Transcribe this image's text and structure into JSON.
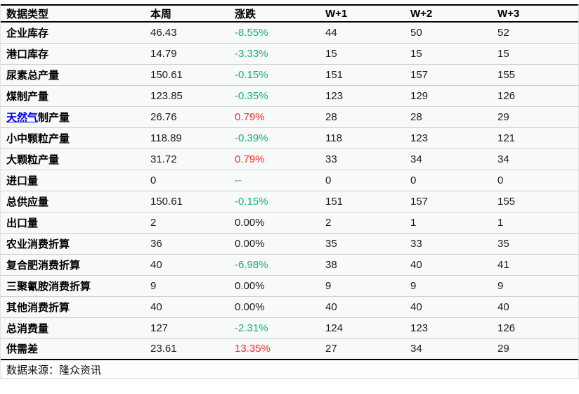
{
  "colors": {
    "positive_red": "#fa2c2c",
    "negative_green": "#12b277",
    "link_blue": "#0000ee"
  },
  "footer": {
    "source_label": "数据来源：隆众资讯"
  },
  "chart_data": {
    "type": "table",
    "columns": [
      "数据类型",
      "本周",
      "涨跌",
      "W+1",
      "W+2",
      "W+3"
    ],
    "rows": [
      {
        "label": "企业库存",
        "week": "46.43",
        "change": "-8.55%",
        "tone": "green",
        "w1": "44",
        "w2": "50",
        "w3": "52"
      },
      {
        "label": "港口库存",
        "week": "14.79",
        "change": "-3.33%",
        "tone": "green",
        "w1": "15",
        "w2": "15",
        "w3": "15"
      },
      {
        "label": "尿素总产量",
        "week": "150.61",
        "change": "-0.15%",
        "tone": "green",
        "w1": "151",
        "w2": "157",
        "w3": "155"
      },
      {
        "label": "煤制产量",
        "week": "123.85",
        "change": "-0.35%",
        "tone": "green",
        "w1": "123",
        "w2": "129",
        "w3": "126"
      },
      {
        "label_link": "天然气",
        "label": "制产量",
        "week": "26.76",
        "change": "0.79%",
        "tone": "red",
        "w1": "28",
        "w2": "28",
        "w3": "29"
      },
      {
        "label": "小中颗粒产量",
        "week": "118.89",
        "change": "-0.39%",
        "tone": "green",
        "w1": "118",
        "w2": "123",
        "w3": "121"
      },
      {
        "label": "大颗粒产量",
        "week": "31.72",
        "change": "0.79%",
        "tone": "red",
        "w1": "33",
        "w2": "34",
        "w3": "34"
      },
      {
        "label": "进口量",
        "week": "0",
        "change": "--",
        "tone": "green",
        "w1": "0",
        "w2": "0",
        "w3": "0"
      },
      {
        "label": "总供应量",
        "week": "150.61",
        "change": "-0.15%",
        "tone": "green",
        "w1": "151",
        "w2": "157",
        "w3": "155"
      },
      {
        "label": "出口量",
        "week": "2",
        "change": "0.00%",
        "tone": "black",
        "w1": "2",
        "w2": "1",
        "w3": "1"
      },
      {
        "label": "农业消费折算",
        "week": "36",
        "change": "0.00%",
        "tone": "black",
        "w1": "35",
        "w2": "33",
        "w3": "35"
      },
      {
        "label": "复合肥消费折算",
        "week": "40",
        "change": "-6.98%",
        "tone": "green",
        "w1": "38",
        "w2": "40",
        "w3": "41"
      },
      {
        "label": "三聚氰胺消费折算",
        "week": "9",
        "change": "0.00%",
        "tone": "black",
        "w1": "9",
        "w2": "9",
        "w3": "9"
      },
      {
        "label": "其他消费折算",
        "week": "40",
        "change": "0.00%",
        "tone": "black",
        "w1": "40",
        "w2": "40",
        "w3": "40"
      },
      {
        "label": "总消费量",
        "week": "127",
        "change": "-2.31%",
        "tone": "green",
        "w1": "124",
        "w2": "123",
        "w3": "126"
      },
      {
        "label": "供需差",
        "week": "23.61",
        "change": "13.35%",
        "tone": "red",
        "w1": "27",
        "w2": "34",
        "w3": "29"
      }
    ]
  }
}
